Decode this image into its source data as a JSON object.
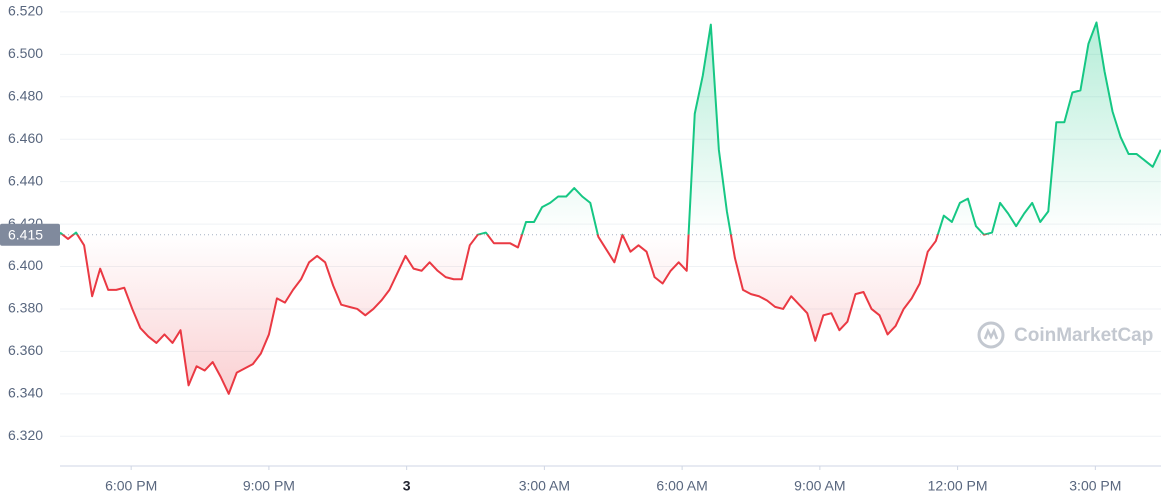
{
  "chart_data": {
    "type": "line",
    "watermark": "CoinMarketCap",
    "baseline": 6.415,
    "colors": {
      "above": "#16c784",
      "below": "#ea3943"
    },
    "grid": true,
    "xlim": [
      16.45,
      40.43
    ],
    "ylim": [
      6.306,
      6.5256
    ],
    "xticks": [
      {
        "value": 18,
        "label": "6:00 PM"
      },
      {
        "value": 21,
        "label": "9:00 PM"
      },
      {
        "value": 24,
        "label": "3",
        "bold": true
      },
      {
        "value": 27,
        "label": "3:00 AM"
      },
      {
        "value": 30,
        "label": "6:00 AM"
      },
      {
        "value": 33,
        "label": "9:00 AM"
      },
      {
        "value": 36,
        "label": "12:00 PM"
      },
      {
        "value": 39,
        "label": "3:00 PM"
      }
    ],
    "yticks": [
      {
        "value": 6.32,
        "label": "6.320"
      },
      {
        "value": 6.34,
        "label": "6.340"
      },
      {
        "value": 6.36,
        "label": "6.360"
      },
      {
        "value": 6.38,
        "label": "6.380"
      },
      {
        "value": 6.4,
        "label": "6.400"
      },
      {
        "value": 6.42,
        "label": "6.420"
      },
      {
        "value": 6.44,
        "label": "6.440"
      },
      {
        "value": 6.46,
        "label": "6.460"
      },
      {
        "value": 6.48,
        "label": "6.480"
      },
      {
        "value": 6.5,
        "label": "6.500"
      },
      {
        "value": 6.52,
        "label": "6.520"
      }
    ],
    "x": [
      16.45,
      16.625,
      16.8,
      16.975,
      17.15,
      17.325,
      17.5,
      17.675,
      17.85,
      18.025,
      18.2,
      18.375,
      18.55,
      18.725,
      18.9,
      19.075,
      19.25,
      19.425,
      19.6,
      19.775,
      19.95,
      20.125,
      20.3,
      20.475,
      20.65,
      20.825,
      21,
      21.175,
      21.35,
      21.525,
      21.7,
      21.875,
      22.05,
      22.225,
      22.4,
      22.575,
      22.75,
      22.925,
      23.1,
      23.275,
      23.45,
      23.625,
      23.8,
      23.975,
      24.15,
      24.325,
      24.5,
      24.675,
      24.85,
      25.025,
      25.2,
      25.375,
      25.55,
      25.725,
      25.9,
      26.075,
      26.25,
      26.425,
      26.6,
      26.775,
      26.95,
      27.125,
      27.3,
      27.475,
      27.65,
      27.825,
      28,
      28.175,
      28.35,
      28.525,
      28.7,
      28.875,
      29.05,
      29.225,
      29.4,
      29.575,
      29.75,
      29.925,
      30.1,
      30.275,
      30.45,
      30.625,
      30.8,
      30.975,
      31.15,
      31.325,
      31.5,
      31.675,
      31.85,
      32.025,
      32.2,
      32.375,
      32.55,
      32.725,
      32.9,
      33.075,
      33.25,
      33.425,
      33.6,
      33.775,
      33.95,
      34.125,
      34.3,
      34.475,
      34.65,
      34.825,
      35,
      35.175,
      35.35,
      35.525,
      35.7,
      35.875,
      36.05,
      36.225,
      36.4,
      36.575,
      36.75,
      36.925,
      37.1,
      37.275,
      37.45,
      37.625,
      37.8,
      37.975,
      38.15,
      38.325,
      38.5,
      38.675,
      38.85,
      39.025,
      39.2,
      39.375,
      39.55,
      39.725,
      39.9,
      40.075,
      40.25,
      40.425
    ],
    "values": [
      6.416,
      6.413,
      6.416,
      6.41,
      6.386,
      6.399,
      6.389,
      6.389,
      6.39,
      6.38,
      6.371,
      6.367,
      6.364,
      6.368,
      6.364,
      6.37,
      6.344,
      6.353,
      6.351,
      6.355,
      6.348,
      6.34,
      6.35,
      6.352,
      6.354,
      6.359,
      6.368,
      6.385,
      6.383,
      6.389,
      6.394,
      6.402,
      6.405,
      6.402,
      6.391,
      6.382,
      6.381,
      6.38,
      6.377,
      6.38,
      6.384,
      6.389,
      6.397,
      6.405,
      6.399,
      6.398,
      6.402,
      6.398,
      6.395,
      6.394,
      6.394,
      6.41,
      6.415,
      6.416,
      6.411,
      6.411,
      6.411,
      6.409,
      6.421,
      6.421,
      6.428,
      6.43,
      6.433,
      6.433,
      6.437,
      6.433,
      6.43,
      6.414,
      6.408,
      6.402,
      6.415,
      6.407,
      6.41,
      6.407,
      6.395,
      6.392,
      6.398,
      6.402,
      6.398,
      6.472,
      6.49,
      6.514,
      6.455,
      6.426,
      6.404,
      6.389,
      6.387,
      6.386,
      6.384,
      6.381,
      6.38,
      6.386,
      6.382,
      6.378,
      6.365,
      6.377,
      6.378,
      6.37,
      6.374,
      6.387,
      6.388,
      6.38,
      6.377,
      6.368,
      6.372,
      6.38,
      6.385,
      6.392,
      6.407,
      6.412,
      6.424,
      6.421,
      6.43,
      6.432,
      6.419,
      6.415,
      6.416,
      6.43,
      6.425,
      6.419,
      6.425,
      6.43,
      6.421,
      6.426,
      6.468,
      6.468,
      6.482,
      6.483,
      6.505,
      6.515,
      6.492,
      6.473,
      6.461,
      6.453,
      6.453,
      6.45,
      6.447,
      6.455
    ]
  }
}
